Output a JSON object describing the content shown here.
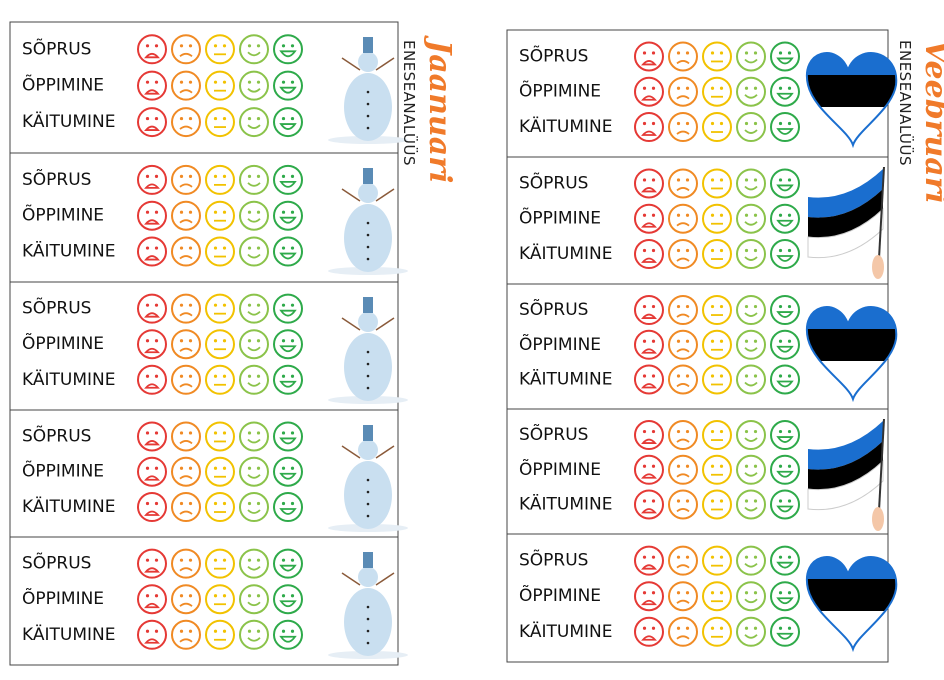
{
  "pages": [
    {
      "month": "Jaanuari",
      "subtitle": "ENESEANALÜÜS",
      "cards": [
        [
          "SÕPRUS",
          "ÕPPIMINE",
          "KÄITUMINE"
        ],
        [
          "SÕPRUS",
          "ÕPPIMINE",
          "KÄITUMINE"
        ],
        [
          "SÕPRUS",
          "ÕPPIMINE",
          "KÄITUMINE"
        ],
        [
          "SÕPRUS",
          "ÕPPIMINE",
          "KÄITUMINE"
        ],
        [
          "SÕPRUS",
          "ÕPPIMINE",
          "KÄITUMINE"
        ]
      ]
    },
    {
      "month": "Veebruari",
      "subtitle": "ENESEANALÜÜS",
      "cards": [
        [
          "SÕPRUS",
          "ÕPPIMINE",
          "KÄITUMINE"
        ],
        [
          "SÕPRUS",
          "ÕPPIMINE",
          "KÄITUMINE"
        ],
        [
          "SÕPRUS",
          "ÕPPIMINE",
          "KÄITUMINE"
        ],
        [
          "SÕPRUS",
          "ÕPPIMINE",
          "KÄITUMINE"
        ],
        [
          "SÕPRUS",
          "ÕPPIMINE",
          "KÄITUMINE"
        ]
      ]
    }
  ]
}
